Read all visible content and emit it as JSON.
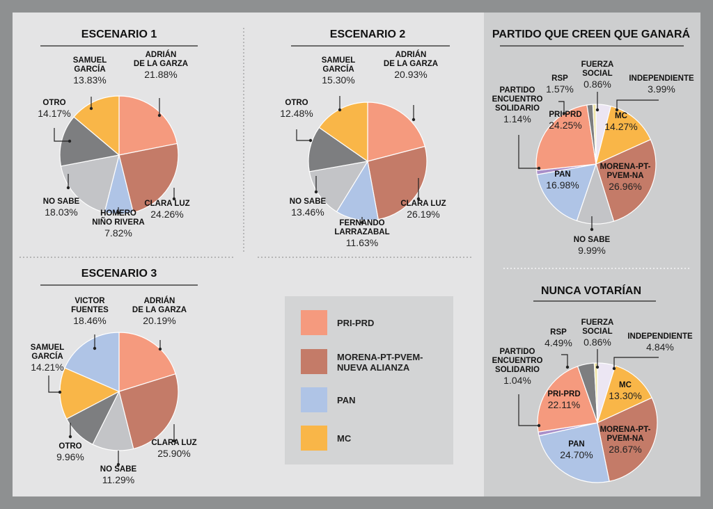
{
  "colors": {
    "pri_prd": "#f59a7e",
    "morena": "#c47b68",
    "pan": "#afc4e6",
    "mc": "#f9b648",
    "otro": "#7d7e80",
    "no_sabe": "#c3c4c7",
    "pes": "#a98fc9",
    "rsp": "#7d7e80",
    "fuerza": "#efe5a8",
    "independiente": "#ece6f3"
  },
  "legend": [
    {
      "label": "PRI-PRD",
      "color": "#f59a7e"
    },
    {
      "label": "MORENA-PT-PVEM-\nNUEVA ALIANZA",
      "color": "#c47b68"
    },
    {
      "label": "PAN",
      "color": "#afc4e6"
    },
    {
      "label": "MC",
      "color": "#f9b648"
    }
  ],
  "chart_data": [
    {
      "type": "pie",
      "title": "ESCENARIO 1",
      "slices": [
        {
          "name": "ADRIÁN\nDE LA GARZA",
          "value": 21.88,
          "pct": "21.88%",
          "color": "#f59a7e"
        },
        {
          "name": "CLARA LUZ",
          "value": 24.26,
          "pct": "24.26%",
          "color": "#c47b68"
        },
        {
          "name": "HOMERO\nNIÑO RIVERA",
          "value": 7.82,
          "pct": "7.82%",
          "color": "#afc4e6"
        },
        {
          "name": "NO SABE",
          "value": 18.03,
          "pct": "18.03%",
          "color": "#c3c4c7"
        },
        {
          "name": "OTRO",
          "value": 14.17,
          "pct": "14.17%",
          "color": "#7d7e80"
        },
        {
          "name": "SAMUEL\nGARCÍA",
          "value": 13.83,
          "pct": "13.83%",
          "color": "#f9b648"
        }
      ]
    },
    {
      "type": "pie",
      "title": "ESCENARIO 2",
      "slices": [
        {
          "name": "ADRIÁN\nDE LA GARZA",
          "value": 20.93,
          "pct": "20.93%",
          "color": "#f59a7e"
        },
        {
          "name": "CLARA LUZ",
          "value": 26.19,
          "pct": "26.19%",
          "color": "#c47b68"
        },
        {
          "name": "FERNANDO\nLARRAZABAL",
          "value": 11.63,
          "pct": "11.63%",
          "color": "#afc4e6"
        },
        {
          "name": "NO SABE",
          "value": 13.46,
          "pct": "13.46%",
          "color": "#c3c4c7"
        },
        {
          "name": "OTRO",
          "value": 12.48,
          "pct": "12.48%",
          "color": "#7d7e80"
        },
        {
          "name": "SAMUEL\nGARCÍA",
          "value": 15.3,
          "pct": "15.30%",
          "color": "#f9b648"
        }
      ]
    },
    {
      "type": "pie",
      "title": "ESCENARIO 3",
      "slices": [
        {
          "name": "ADRIÁN\nDE LA GARZA",
          "value": 20.19,
          "pct": "20.19%",
          "color": "#f59a7e"
        },
        {
          "name": "CLARA LUZ",
          "value": 25.9,
          "pct": "25.90%",
          "color": "#c47b68"
        },
        {
          "name": "NO SABE",
          "value": 11.29,
          "pct": "11.29%",
          "color": "#c3c4c7"
        },
        {
          "name": "OTRO",
          "value": 9.96,
          "pct": "9.96%",
          "color": "#7d7e80"
        },
        {
          "name": "SAMUEL\nGARCÍA",
          "value": 14.21,
          "pct": "14.21%",
          "color": "#f9b648"
        },
        {
          "name": "VICTOR\nFUENTES",
          "value": 18.46,
          "pct": "18.46%",
          "color": "#afc4e6"
        }
      ]
    },
    {
      "type": "pie",
      "title": "PARTIDO QUE CREEN QUE GANARÁ",
      "slices": [
        {
          "name": "INDEPENDIENTE",
          "value": 3.99,
          "pct": "3.99%",
          "color": "#ece6f3"
        },
        {
          "name": "MC",
          "value": 14.27,
          "pct": "14.27%",
          "color": "#f9b648"
        },
        {
          "name": "MORENA-PT-\nPVEM-NA",
          "value": 26.96,
          "pct": "26.96%",
          "color": "#c47b68"
        },
        {
          "name": "NO SABE",
          "value": 9.99,
          "pct": "9.99%",
          "color": "#c3c4c7"
        },
        {
          "name": "PAN",
          "value": 16.98,
          "pct": "16.98%",
          "color": "#afc4e6"
        },
        {
          "name": "PARTIDO\nENCUENTRO\nSOLIDARIO",
          "value": 1.14,
          "pct": "1.14%",
          "color": "#a98fc9"
        },
        {
          "name": "PRI-PRD",
          "value": 24.25,
          "pct": "24.25%",
          "color": "#f59a7e"
        },
        {
          "name": "RSP",
          "value": 1.57,
          "pct": "1.57%",
          "color": "#7d7e80"
        },
        {
          "name": "FUERZA\nSOCIAL",
          "value": 0.86,
          "pct": "0.86%",
          "color": "#efe5a8"
        }
      ]
    },
    {
      "type": "pie",
      "title": "NUNCA VOTARÍAN",
      "slices": [
        {
          "name": "INDEPENDIENTE",
          "value": 4.84,
          "pct": "4.84%",
          "color": "#ece6f3"
        },
        {
          "name": "MC",
          "value": 13.3,
          "pct": "13.30%",
          "color": "#f9b648"
        },
        {
          "name": "MORENA-PT-\nPVEM-NA",
          "value": 28.67,
          "pct": "28.67%",
          "color": "#c47b68"
        },
        {
          "name": "PAN",
          "value": 24.7,
          "pct": "24.70%",
          "color": "#afc4e6"
        },
        {
          "name": "PARTIDO\nENCUENTRO\nSOLIDARIO",
          "value": 1.04,
          "pct": "1.04%",
          "color": "#a98fc9"
        },
        {
          "name": "PRI-PRD",
          "value": 22.11,
          "pct": "22.11%",
          "color": "#f59a7e"
        },
        {
          "name": "RSP",
          "value": 4.49,
          "pct": "4.49%",
          "color": "#7d7e80"
        },
        {
          "name": "FUERZA\nSOCIAL",
          "value": 0.86,
          "pct": "0.86%",
          "color": "#efe5a8"
        }
      ]
    }
  ]
}
